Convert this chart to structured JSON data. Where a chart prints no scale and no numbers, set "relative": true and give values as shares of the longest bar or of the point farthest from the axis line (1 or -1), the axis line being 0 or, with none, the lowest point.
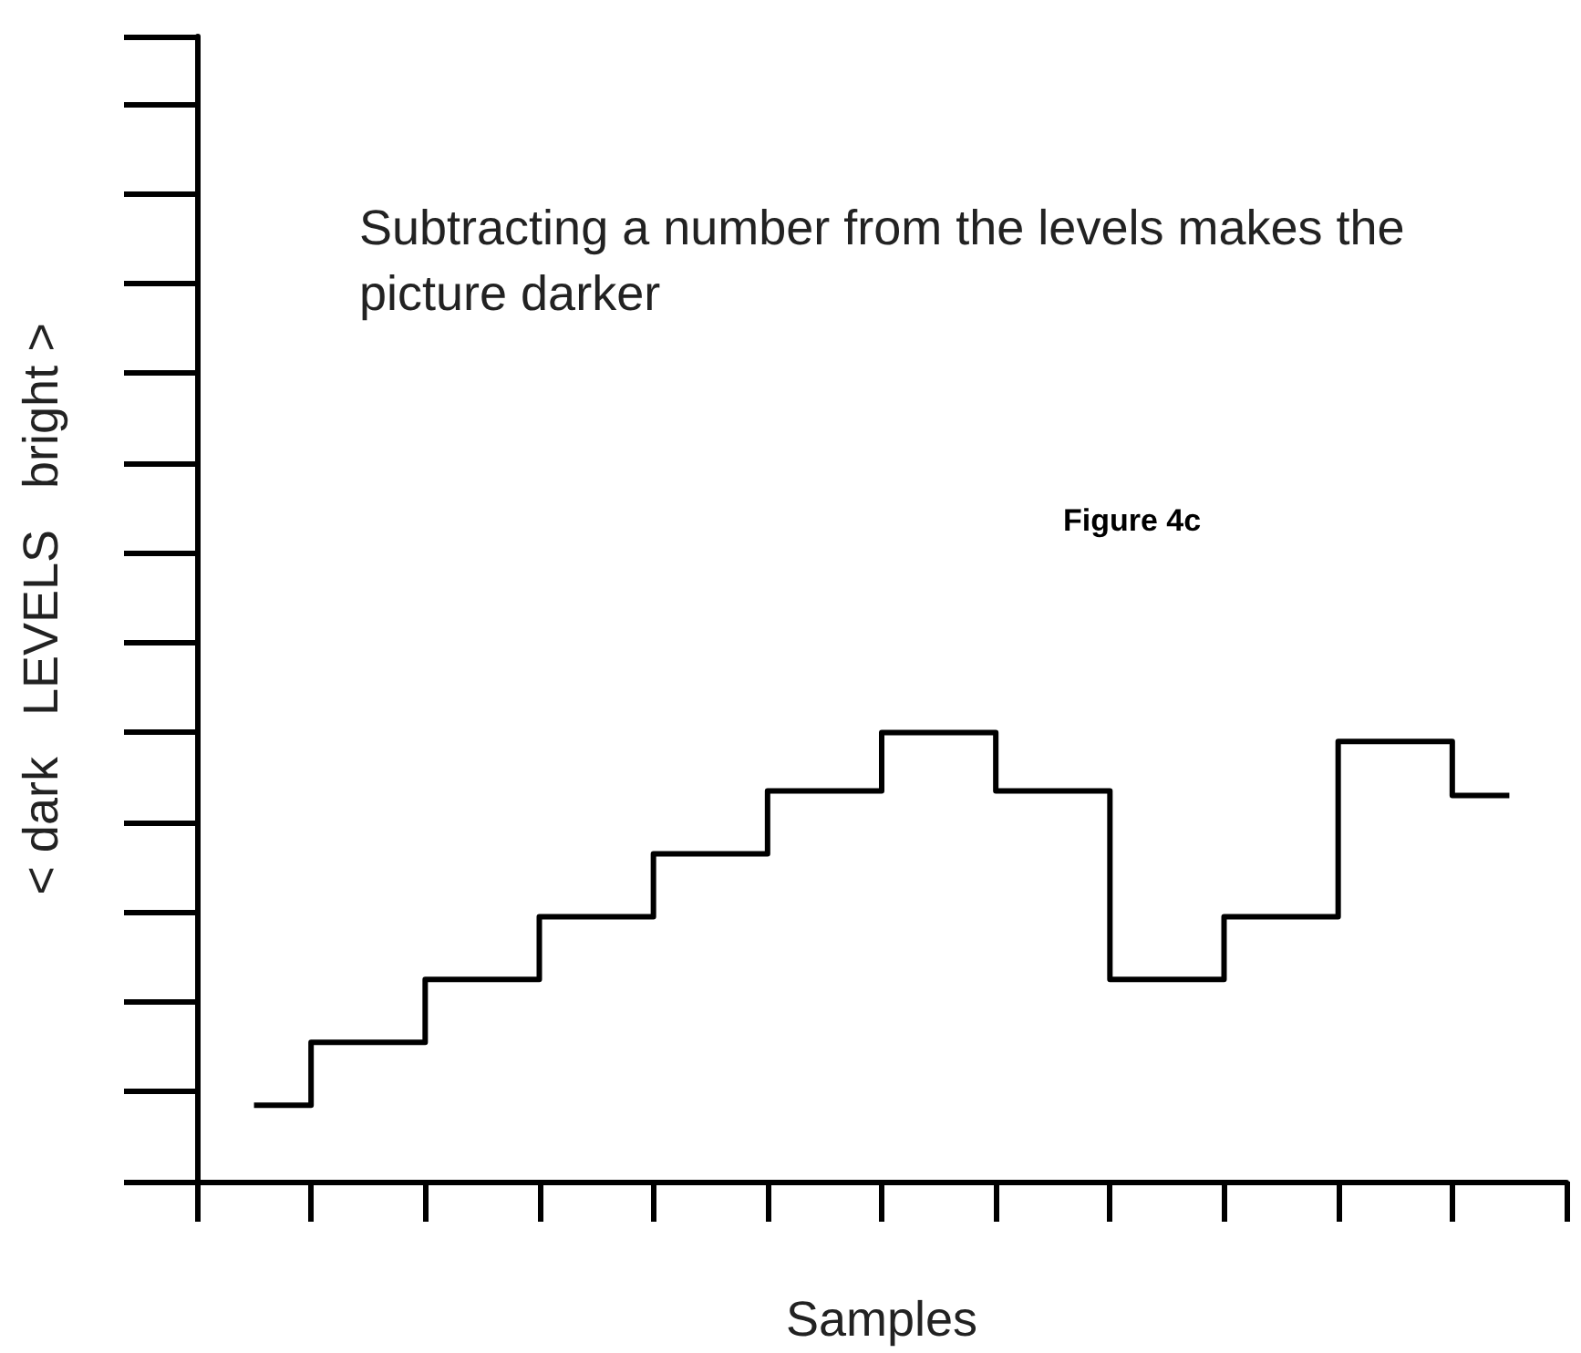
{
  "chart_data": {
    "type": "step",
    "relative": true,
    "xlabel": "Samples",
    "ylabel": "< dark   LEVELS   bright >",
    "annotations": [
      "Subtracting a number from the levels makes the picture darker",
      "Figure 4c"
    ],
    "categories": [
      null,
      null,
      null,
      null,
      null,
      null,
      null,
      null,
      null,
      null,
      null,
      null
    ],
    "series": [
      {
        "color": "#000000",
        "values": [
          0.17,
          0.31,
          0.45,
          0.59,
          0.73,
          0.87,
          1,
          0.87,
          0.45,
          0.59,
          0.98,
          0.86
        ]
      }
    ],
    "grid": false,
    "marker": "none",
    "line_style": "solid"
  }
}
